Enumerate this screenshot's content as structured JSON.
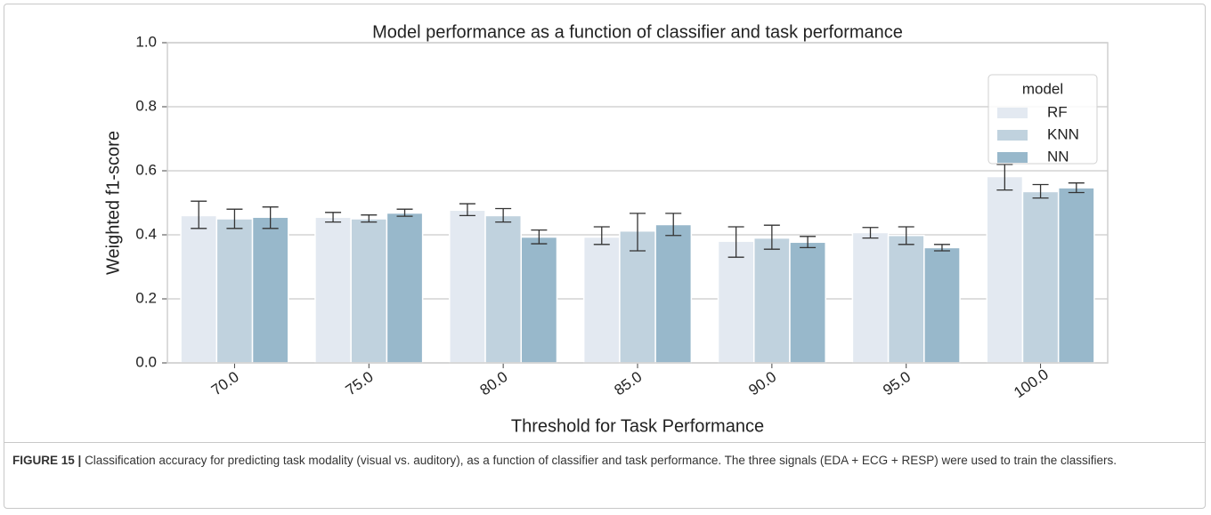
{
  "chart_data": {
    "type": "bar",
    "title": "Model performance as a function of classifier and task performance",
    "x_label": "Threshold for Task Performance",
    "y_label": "Weighted f1-score",
    "categories": [
      "70.0",
      "75.0",
      "80.0",
      "85.0",
      "90.0",
      "95.0",
      "100.0"
    ],
    "series": [
      {
        "name": "RF",
        "color": "#e3e9f1",
        "values": [
          0.46,
          0.455,
          0.477,
          0.393,
          0.38,
          0.407,
          0.582
        ],
        "ci_low": [
          0.42,
          0.44,
          0.46,
          0.37,
          0.33,
          0.39,
          0.54
        ],
        "ci_high": [
          0.505,
          0.47,
          0.497,
          0.425,
          0.425,
          0.423,
          0.62
        ]
      },
      {
        "name": "KNN",
        "color": "#c0d2de",
        "values": [
          0.45,
          0.45,
          0.46,
          0.412,
          0.39,
          0.398,
          0.535
        ],
        "ci_low": [
          0.42,
          0.44,
          0.44,
          0.35,
          0.355,
          0.37,
          0.515
        ],
        "ci_high": [
          0.48,
          0.462,
          0.482,
          0.467,
          0.43,
          0.425,
          0.557
        ]
      },
      {
        "name": "NN",
        "color": "#98b8cb",
        "values": [
          0.455,
          0.468,
          0.393,
          0.432,
          0.377,
          0.36,
          0.547
        ],
        "ci_low": [
          0.42,
          0.458,
          0.372,
          0.398,
          0.36,
          0.35,
          0.532
        ],
        "ci_high": [
          0.487,
          0.48,
          0.415,
          0.467,
          0.395,
          0.37,
          0.562
        ]
      }
    ],
    "legend_title": "model",
    "legend_position": "upper right",
    "ylim": [
      0,
      1
    ],
    "yticks": [
      {
        "value": 0,
        "label": "0.0"
      },
      0.2,
      0.4,
      0.6,
      0.8,
      {
        "value": 1,
        "label": "1.0"
      }
    ],
    "grid": true
  },
  "caption": {
    "label": "FIGURE 15 |",
    "text": "Classification accuracy for predicting task modality (visual vs. auditory), as a function of classifier and task performance. The three signals (EDA + ECG + RESP) were used to train the classifiers."
  }
}
